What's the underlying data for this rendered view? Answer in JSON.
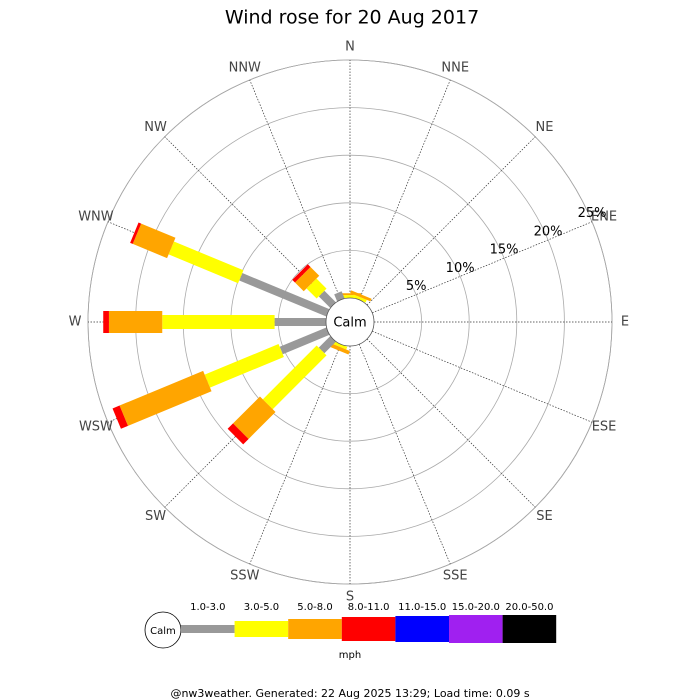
{
  "chart_data": {
    "type": "wind_rose",
    "title": "Wind rose for 20 Aug 2017",
    "calm_label": "Calm",
    "legend_title": "mph",
    "footer": "@nw3weather. Generated: 22 Aug 2025 13:29; Load time: 0.09 s",
    "categories": [
      "N",
      "NNE",
      "NE",
      "ENE",
      "E",
      "ESE",
      "SE",
      "SSE",
      "S",
      "SSW",
      "SW",
      "WSW",
      "W",
      "WNW",
      "NW",
      "NNW"
    ],
    "rlim": [
      0,
      25
    ],
    "rticks": [
      {
        "value": 5,
        "label": "5%"
      },
      {
        "value": 10,
        "label": "10%"
      },
      {
        "value": 15,
        "label": "15%"
      },
      {
        "value": 20,
        "label": "20%"
      },
      {
        "value": 25,
        "label": "25%"
      }
    ],
    "series": [
      {
        "name": "1.0-3.0",
        "color": "#999999",
        "values": [
          0,
          0,
          0,
          0,
          0,
          0,
          0,
          0,
          0,
          0,
          1.7,
          5.3,
          5.4,
          9.9,
          1.7,
          0.8
        ]
      },
      {
        "name": "3.0-5.0",
        "color": "#ffff00",
        "values": [
          0.3,
          0.3,
          0,
          0,
          0,
          0,
          0,
          0,
          0,
          0.3,
          8.0,
          8.4,
          11.8,
          7.9,
          1.5,
          0
        ]
      },
      {
        "name": "5.0-8.0",
        "color": "#ffa500",
        "values": [
          0.2,
          0.3,
          0,
          0,
          0,
          0,
          0,
          0,
          0,
          0.4,
          4.0,
          9.5,
          5.6,
          3.9,
          1.3,
          0
        ]
      },
      {
        "name": "8.0-11.0",
        "color": "#ff0000",
        "values": [
          0,
          0,
          0,
          0,
          0,
          0,
          0,
          0,
          0,
          0,
          0.8,
          0.8,
          0.6,
          0.3,
          0.4,
          0
        ]
      },
      {
        "name": "11.0-15.0",
        "color": "#0000ff",
        "values": [
          0,
          0,
          0,
          0,
          0,
          0,
          0,
          0,
          0,
          0,
          0,
          0,
          0,
          0,
          0,
          0
        ]
      },
      {
        "name": "15.0-20.0",
        "color": "#a020f0",
        "values": [
          0,
          0,
          0,
          0,
          0,
          0,
          0,
          0,
          0,
          0,
          0,
          0,
          0,
          0,
          0,
          0
        ]
      },
      {
        "name": "20.0-50.0",
        "color": "#000000",
        "values": [
          0,
          0,
          0,
          0,
          0,
          0,
          0,
          0,
          0,
          0,
          0,
          0,
          0,
          0,
          0,
          0
        ]
      }
    ]
  }
}
